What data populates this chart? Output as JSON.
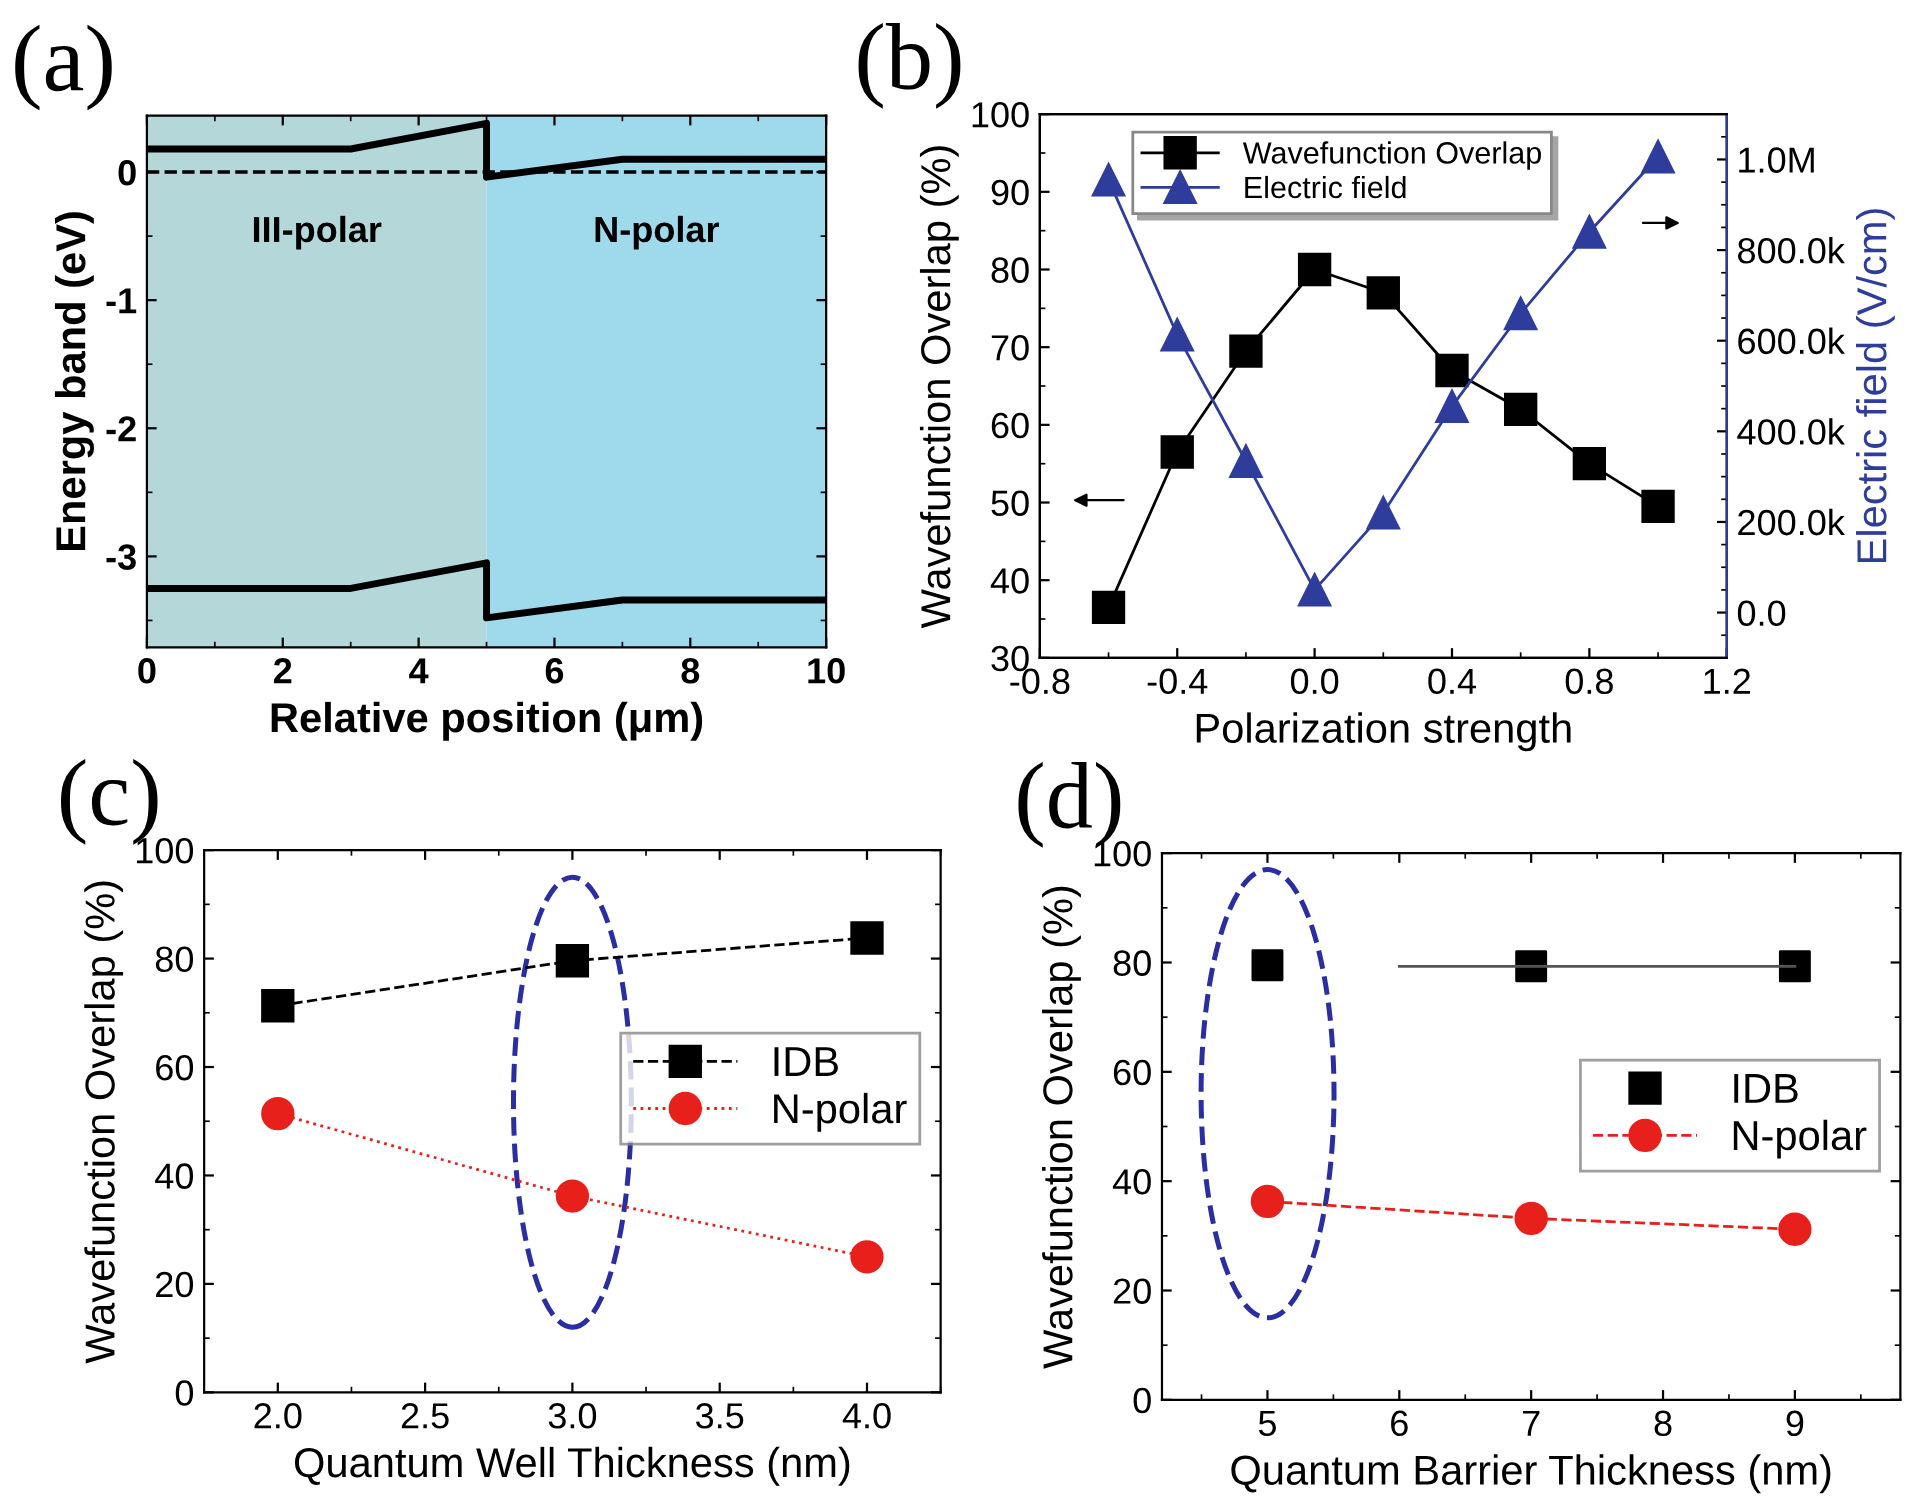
{
  "chart_data": [
    {
      "type": "line",
      "title": "(a)",
      "xlabel": "Relative position (μm)",
      "ylabel": "Energy band (eV)",
      "xlim": [
        0,
        10
      ],
      "ylim": [
        -3.71,
        0.44
      ],
      "xticks": [
        0,
        2,
        4,
        6,
        8,
        10
      ],
      "yticks": [
        -3,
        -2,
        -1,
        0
      ],
      "grid": false,
      "legend": false,
      "series": [
        {
          "color": "#000000",
          "x": [
            0,
            3,
            5,
            5,
            7,
            10
          ],
          "values": [
            0.18,
            0.18,
            0.38,
            -0.04,
            0.1,
            0.1
          ],
          "marker": "none",
          "line_style": "solid"
        },
        {
          "color": "#000000",
          "x": [
            0,
            3,
            5,
            5,
            7,
            10
          ],
          "values": [
            -3.25,
            -3.25,
            -3.05,
            -3.48,
            -3.34,
            -3.34
          ],
          "marker": "none",
          "line_style": "solid"
        }
      ],
      "ref_lines": [
        {
          "axis": "y",
          "value": 0,
          "color": "#000000",
          "line_style": "dashed"
        }
      ],
      "bands": [
        {
          "axis": "x",
          "from": 0,
          "to": 5,
          "label": "III-polar",
          "color": "#b4d8da"
        },
        {
          "axis": "x",
          "from": 5,
          "to": 10,
          "label": "N-polar",
          "color": "#9fdaec"
        }
      ]
    },
    {
      "type": "line",
      "title": "(b)",
      "xlabel": "Polarization strength",
      "ylabel": "Wavefunction Overlap (%)",
      "y2label": "Electric field (V/cm)",
      "xlim": [
        -0.8,
        1.2
      ],
      "ylim": [
        30,
        100
      ],
      "y2lim": [
        -100000,
        1100000
      ],
      "xticks": [
        -0.8,
        -0.4,
        {
          "value": 0,
          "label": "0.0"
        },
        0.4,
        0.8,
        1.2
      ],
      "yticks": [
        30,
        40,
        50,
        60,
        70,
        80,
        90,
        100
      ],
      "y2ticks": [
        {
          "value": 0,
          "label": "0.0"
        },
        {
          "value": 200000,
          "label": "200.0k"
        },
        {
          "value": 400000,
          "label": "400.0k"
        },
        {
          "value": 600000,
          "label": "600.0k"
        },
        {
          "value": 800000,
          "label": "800.0k"
        },
        {
          "value": 1000000,
          "label": "1.0M"
        }
      ],
      "grid": false,
      "legend": "top",
      "series": [
        {
          "name": "Wavefunction Overlap",
          "color": "#000000",
          "x": [
            -0.6,
            -0.4,
            -0.2,
            0,
            0.2,
            0.4,
            0.6,
            0.8,
            1.0
          ],
          "values": [
            36.5,
            56.5,
            69.5,
            80,
            77,
            67,
            62,
            55,
            49.5
          ],
          "marker": "square",
          "line_style": "solid"
        },
        {
          "name": "Electric field",
          "color": "#2e3d9c",
          "axis": "y2",
          "x": [
            -0.6,
            -0.4,
            -0.2,
            0,
            0.2,
            0.4,
            0.6,
            0.8,
            1.0
          ],
          "values": [
            955000,
            613000,
            334000,
            50000,
            220000,
            455000,
            660000,
            840000,
            1006000
          ],
          "marker": "triangle",
          "line_style": "solid"
        }
      ]
    },
    {
      "type": "line",
      "title": "(c)",
      "xlabel": "Quantum Well Thickness (nm)",
      "ylabel": "Wavefunction Overlap (%)",
      "xlim": [
        1.75,
        4.25
      ],
      "ylim": [
        0,
        100
      ],
      "xticks": [
        {
          "value": 2,
          "label": "2.0"
        },
        2.5,
        {
          "value": 3,
          "label": "3.0"
        },
        3.5,
        {
          "value": 4,
          "label": "4.0"
        }
      ],
      "yticks": [
        0,
        20,
        40,
        60,
        80,
        100
      ],
      "grid": false,
      "legend": "right",
      "series": [
        {
          "name": "IDB",
          "color": "#000000",
          "x": [
            2,
            3,
            4
          ],
          "values": [
            71.3,
            79.6,
            83.8
          ],
          "marker": "square",
          "line_style": "dashed"
        },
        {
          "name": "N-polar",
          "color": "#e8201c",
          "x": [
            2,
            3,
            4
          ],
          "values": [
            51.4,
            36.2,
            25
          ],
          "marker": "circle",
          "line_style": "dotted"
        }
      ]
    },
    {
      "type": "line",
      "title": "(d)",
      "xlabel": "Quantum Barrier Thickness (nm)",
      "ylabel": "Wavefunction Overlap (%)",
      "xlim": [
        4.2,
        9.8
      ],
      "ylim": [
        0,
        100
      ],
      "xticks": [
        5,
        6,
        7,
        8,
        9
      ],
      "yticks": [
        0,
        20,
        40,
        60,
        80,
        100
      ],
      "grid": false,
      "legend": "right",
      "series": [
        {
          "name": "IDB",
          "color": "#000000",
          "type": "scatter",
          "x": [
            5,
            7,
            9
          ],
          "values": [
            79.5,
            79.3,
            79.3
          ],
          "marker": "square"
        },
        {
          "color": "#555555",
          "x": [
            6,
            9
          ],
          "values": [
            79.3,
            79.3
          ],
          "marker": "none",
          "line_style": "solid"
        },
        {
          "name": "N-polar",
          "color": "#e8201c",
          "x": [
            5,
            7,
            9
          ],
          "values": [
            36.3,
            33.2,
            31.2
          ],
          "marker": "circle",
          "line_style": "dashed"
        }
      ]
    }
  ]
}
